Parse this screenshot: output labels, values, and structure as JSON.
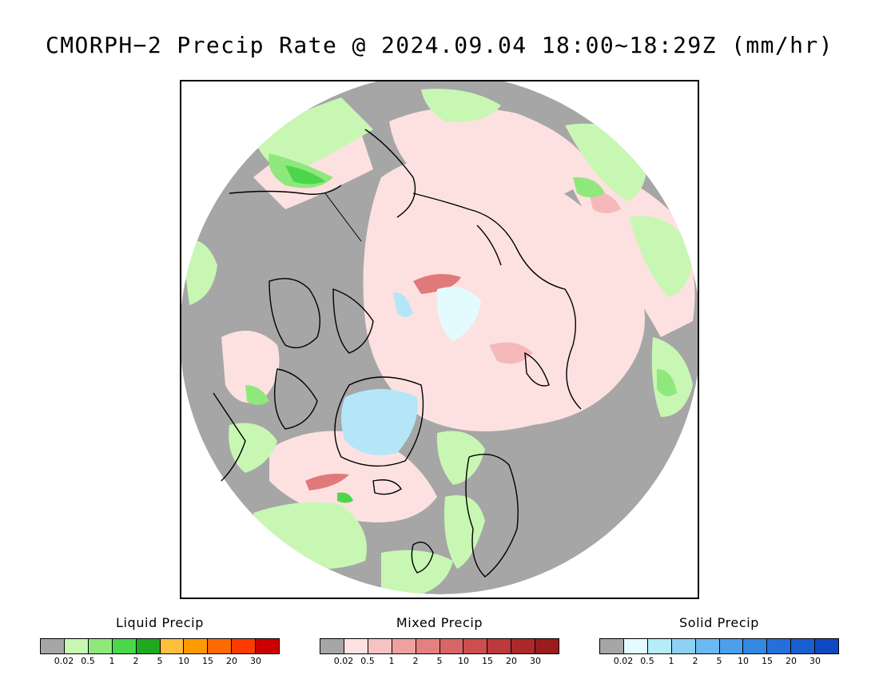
{
  "title": "CMORPH−2 Precip Rate @ 2024.09.04 18:00~18:29Z (mm/hr)",
  "map": {
    "projection": "north-polar-stereographic",
    "colors": {
      "no_precip": "#a6a6a6",
      "liquid_light": "#c8f7b4",
      "liquid_mid": "#8fe87c",
      "liquid_strong": "#4cd64c",
      "mixed_light": "#fde1e1",
      "mixed_mid": "#f6b9b9",
      "mixed_strong": "#e07a7a",
      "solid_light": "#e3fbff",
      "solid_mid": "#b4e6f7",
      "coastline": "#000000"
    }
  },
  "legends": [
    {
      "title": "Liquid Precip",
      "colors": [
        "#a6a6a6",
        "#c8f7b4",
        "#8fe87c",
        "#4cd64c",
        "#1fa91f",
        "#ffbe3c",
        "#ff9a00",
        "#ff6a00",
        "#ff3a00",
        "#cc0000"
      ],
      "ticks": [
        "0.02",
        "0.5",
        "1",
        "2",
        "5",
        "10",
        "15",
        "20",
        "30"
      ]
    },
    {
      "title": "Mixed Precip",
      "colors": [
        "#a6a6a6",
        "#fde1e1",
        "#f6c3c3",
        "#eea1a1",
        "#e58080",
        "#d96666",
        "#cc4e4e",
        "#bd3a3a",
        "#ad2828",
        "#9a1c1c"
      ],
      "ticks": [
        "0.02",
        "0.5",
        "1",
        "2",
        "5",
        "10",
        "15",
        "20",
        "30"
      ]
    },
    {
      "title": "Solid Precip",
      "colors": [
        "#a6a6a6",
        "#e3fbff",
        "#b4ecf7",
        "#8fd0f5",
        "#6cb8f0",
        "#4aa0ea",
        "#3388e3",
        "#246fda",
        "#1a5fd0",
        "#1048bf"
      ],
      "ticks": [
        "0.02",
        "0.5",
        "1",
        "2",
        "5",
        "10",
        "15",
        "20",
        "30"
      ]
    }
  ]
}
